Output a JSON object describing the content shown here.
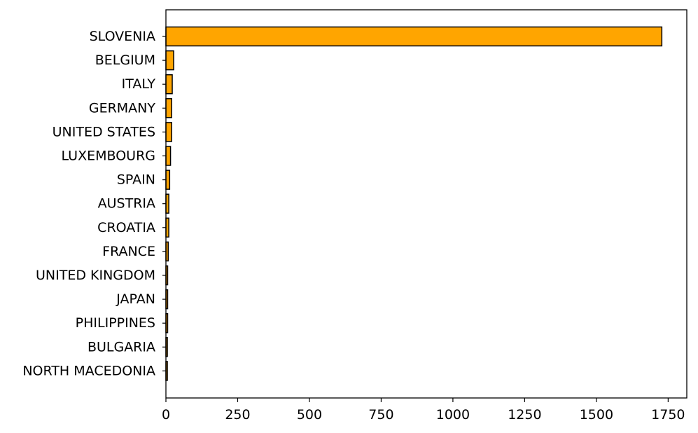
{
  "chart_data": {
    "type": "bar",
    "orientation": "horizontal",
    "categories": [
      "SLOVENIA",
      "BELGIUM",
      "ITALY",
      "GERMANY",
      "UNITED STATES",
      "LUXEMBOURG",
      "SPAIN",
      "AUSTRIA",
      "CROATIA",
      "FRANCE",
      "UNITED KINGDOM",
      "JAPAN",
      "PHILIPPINES",
      "BULGARIA",
      "NORTH MACEDONIA"
    ],
    "values": [
      1728,
      27,
      22,
      20,
      20,
      16,
      13,
      10,
      10,
      8,
      6,
      6,
      6,
      5,
      5
    ],
    "xticks": [
      0,
      250,
      500,
      750,
      1000,
      1250,
      1500,
      1750
    ],
    "xlim": [
      0,
      1815
    ],
    "title": "",
    "xlabel": "",
    "ylabel": "",
    "grid": false,
    "bar_color": "#FFA500",
    "edge_color": "#000000"
  }
}
